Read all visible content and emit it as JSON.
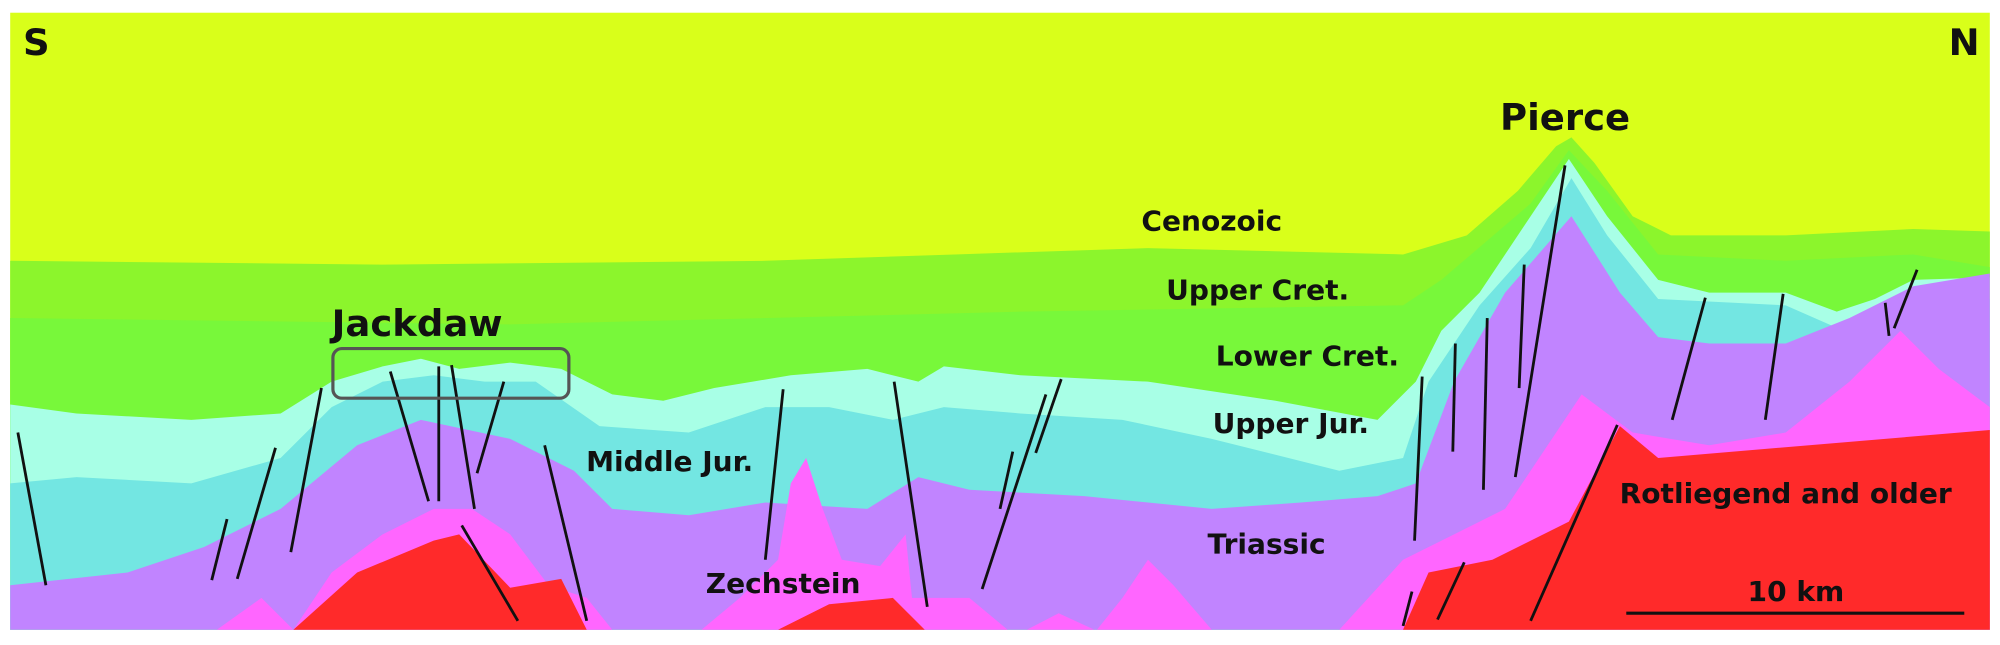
{
  "orientation": {
    "left": "S",
    "right": "N"
  },
  "fields": {
    "pierce": "Pierce",
    "jackdaw": "Jackdaw"
  },
  "units": {
    "cenozoic": "Cenozoic",
    "upper_cret": "Upper Cret.",
    "lower_cret": "Lower Cret.",
    "upper_jur": "Upper Jur.",
    "middle_jur": "Middle Jur.",
    "triassic": "Triassic",
    "zechstein": "Zechstein",
    "rotliegend": "Rotliegend and older"
  },
  "scale_bar": {
    "label": "10 km"
  }
}
